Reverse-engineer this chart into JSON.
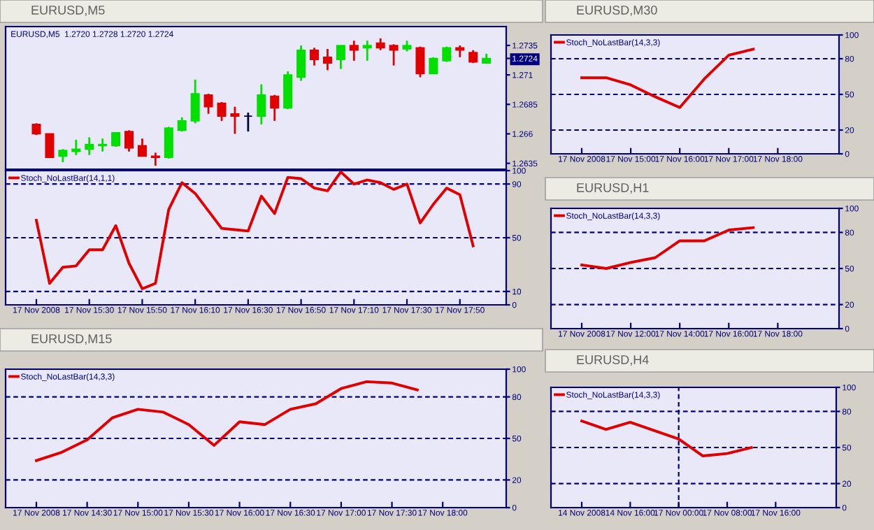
{
  "chart_data": [
    {
      "type": "candlestick",
      "title": "EURUSD,M5",
      "subtitle": "EURUSD,M5  1.2720 1.2728 1.2720 1.2724",
      "categories": [
        null,
        null,
        null,
        null,
        null,
        null,
        null,
        null,
        null,
        null,
        null,
        null,
        null,
        null,
        null,
        null,
        null,
        null,
        null,
        null,
        null,
        null,
        null,
        null,
        null,
        null,
        null,
        null,
        null,
        null,
        null,
        null,
        null,
        null,
        null,
        null
      ],
      "ohlc": [
        [
          1.2668,
          1.2669,
          1.2659,
          1.266
        ],
        [
          1.266,
          1.266,
          1.264,
          1.264
        ],
        [
          1.2641,
          1.2647,
          1.2636,
          1.2646
        ],
        [
          1.2645,
          1.2655,
          1.2642,
          1.2647
        ],
        [
          1.2647,
          1.2657,
          1.2642,
          1.2651
        ],
        [
          1.265,
          1.2656,
          1.2645,
          1.2651
        ],
        [
          1.265,
          1.2661,
          1.2649,
          1.2661
        ],
        [
          1.2662,
          1.2663,
          1.2645,
          1.2648
        ],
        [
          1.265,
          1.2656,
          1.2641,
          1.2641
        ],
        [
          1.2641,
          1.2644,
          1.2633,
          1.264
        ],
        [
          1.264,
          1.2666,
          1.2639,
          1.2665
        ],
        [
          1.2663,
          1.2674,
          1.2662,
          1.2671
        ],
        [
          1.2671,
          1.2706,
          1.2669,
          1.2694
        ],
        [
          1.2693,
          1.2694,
          1.2677,
          1.2683
        ],
        [
          1.2686,
          1.2687,
          1.2671,
          1.2675
        ],
        [
          1.2677,
          1.2683,
          1.266,
          1.2675
        ],
        [
          1.2675,
          1.2678,
          1.2662,
          1.2675
        ],
        [
          1.2675,
          1.2702,
          1.2668,
          1.2693
        ],
        [
          1.2692,
          1.2693,
          1.2671,
          1.2682
        ],
        [
          1.2682,
          1.2713,
          1.2681,
          1.271
        ],
        [
          1.2708,
          1.2735,
          1.2705,
          1.2731
        ],
        [
          1.2731,
          1.2733,
          1.2718,
          1.2723
        ],
        [
          1.2725,
          1.2732,
          1.2714,
          1.272
        ],
        [
          1.2723,
          1.2735,
          1.2715,
          1.2735
        ],
        [
          1.2735,
          1.2739,
          1.2722,
          1.2731
        ],
        [
          1.2733,
          1.2739,
          1.2722,
          1.2735
        ],
        [
          1.2737,
          1.2741,
          1.2731,
          1.2733
        ],
        [
          1.2735,
          1.2736,
          1.2718,
          1.2731
        ],
        [
          1.2732,
          1.2739,
          1.273,
          1.2735
        ],
        [
          1.2733,
          1.2734,
          1.2708,
          1.2711
        ],
        [
          1.2711,
          1.2725,
          1.2711,
          1.2724
        ],
        [
          1.2722,
          1.2734,
          1.2721,
          1.2733
        ],
        [
          1.2733,
          1.2735,
          1.2725,
          1.2731
        ],
        [
          1.2729,
          1.2731,
          1.272,
          1.2721
        ],
        [
          1.272,
          1.2728,
          1.272,
          1.2724
        ],
        null
      ],
      "colors": [
        "#e00000",
        "#e00000",
        "#00e000",
        "#00e000",
        "#00e000",
        "#00e000",
        "#00e000",
        "#e00000",
        "#e00000",
        "#e00000",
        "#00e000",
        "#00e000",
        "#00e000",
        "#e00000",
        "#e00000",
        "#e00000",
        "#000040",
        "#00e000",
        "#e00000",
        "#00e000",
        "#00e000",
        "#e00000",
        "#e00000",
        "#00e000",
        "#e00000",
        "#00e000",
        "#e00000",
        "#e00000",
        "#00e000",
        "#e00000",
        "#00e000",
        "#00e000",
        "#e00000",
        "#e00000",
        "#00e000",
        "#000040"
      ],
      "ylim": [
        1.263,
        1.2751
      ],
      "yticks": [
        1.2635,
        1.266,
        1.2685,
        1.271,
        1.2735,
        {
          "value": 1.2724,
          "label": "1.2724"
        }
      ],
      "tick_labels": "y"
    },
    {
      "type": "line",
      "title": "EURUSD,M30",
      "ylim": [
        0,
        100
      ],
      "yticks": [
        0,
        20,
        50,
        80,
        100
      ],
      "legend": "top left",
      "categories": [
        "17 Nov 2008",
        null,
        "17 Nov 15:00",
        null,
        "17 Nov 16:00",
        null,
        "17 Nov 17:00",
        null,
        "17 Nov 18:00",
        null,
        null
      ],
      "ref_lines": [
        {
          "axis": "y",
          "value": 80,
          "color": "#000080",
          "line_style": "dashed"
        },
        {
          "axis": "y",
          "value": 50,
          "color": "#000080",
          "line_style": "dashed"
        },
        {
          "axis": "y",
          "value": 20,
          "color": "#000080",
          "line_style": "dashed"
        }
      ],
      "series": [
        {
          "name": "Stoch_NoLastBar(14,3,3)",
          "color": "#e00000",
          "values": [
            64,
            64,
            58,
            48,
            39,
            63,
            83,
            88,
            null,
            null,
            null
          ]
        }
      ]
    },
    {
      "type": "line",
      "ylim": [
        0,
        100
      ],
      "yticks": [
        0,
        10,
        50,
        90,
        100
      ],
      "legend": "top left",
      "categories": [
        "17 Nov 2008",
        null,
        null,
        null,
        "17 Nov 15:30",
        null,
        null,
        null,
        "17 Nov 15:50",
        null,
        null,
        null,
        "17 Nov 16:10",
        null,
        null,
        null,
        "17 Nov 16:30",
        null,
        null,
        null,
        "17 Nov 16:50",
        null,
        null,
        null,
        "17 Nov 17:10",
        null,
        null,
        null,
        "17 Nov 17:30",
        null,
        null,
        null,
        "17 Nov 17:50",
        null,
        null,
        null
      ],
      "ref_lines": [
        {
          "axis": "y",
          "value": 90,
          "color": "#000080",
          "line_style": "dashed"
        },
        {
          "axis": "y",
          "value": 50,
          "color": "#000080",
          "line_style": "dashed"
        },
        {
          "axis": "y",
          "value": 10,
          "color": "#000080",
          "line_style": "dashed"
        }
      ],
      "series": [
        {
          "name": "Stoch_NoLastBar(14,1,1)",
          "color": "#e00000",
          "values": [
            63,
            16,
            28,
            29,
            41,
            41,
            59,
            31,
            12,
            16,
            71,
            91,
            83,
            70,
            57,
            56,
            55,
            81,
            68,
            95,
            94,
            87,
            85,
            99,
            90,
            93,
            91,
            86,
            90,
            61,
            75,
            87,
            82,
            44,
            null,
            null
          ]
        }
      ]
    },
    {
      "type": "line",
      "title": "EURUSD,H1",
      "ylim": [
        0,
        100
      ],
      "yticks": [
        0,
        20,
        50,
        80,
        100
      ],
      "legend": "top left",
      "categories": [
        "17 Nov 2008",
        null,
        "17 Nov 12:00",
        null,
        "17 Nov 14:00",
        null,
        "17 Nov 16:00",
        null,
        "17 Nov 18:00",
        null,
        null
      ],
      "ref_lines": [
        {
          "axis": "y",
          "value": 80,
          "color": "#000080",
          "line_style": "dashed"
        },
        {
          "axis": "y",
          "value": 50,
          "color": "#000080",
          "line_style": "dashed"
        },
        {
          "axis": "y",
          "value": 20,
          "color": "#000080",
          "line_style": "dashed"
        }
      ],
      "series": [
        {
          "name": "Stoch_NoLastBar(14,3,3)",
          "color": "#e00000",
          "values": [
            53,
            50,
            55,
            59,
            73,
            73,
            82,
            84,
            null,
            null,
            null
          ]
        }
      ]
    },
    {
      "type": "line",
      "title": "EURUSD,M15",
      "ylim": [
        0,
        100
      ],
      "yticks": [
        0,
        20,
        50,
        80,
        100
      ],
      "legend": "top left",
      "categories": [
        "17 Nov 2008",
        null,
        "17 Nov 14:30",
        null,
        "17 Nov 15:00",
        null,
        "17 Nov 15:30",
        null,
        "17 Nov 16:00",
        null,
        "17 Nov 16:30",
        null,
        "17 Nov 17:00",
        null,
        "17 Nov 17:30",
        null,
        "17 Nov 18:00",
        null,
        null
      ],
      "ref_lines": [
        {
          "axis": "y",
          "value": 80,
          "color": "#000080",
          "line_style": "dashed"
        },
        {
          "axis": "y",
          "value": 50,
          "color": "#000080",
          "line_style": "dashed"
        },
        {
          "axis": "y",
          "value": 20,
          "color": "#000080",
          "line_style": "dashed"
        }
      ],
      "series": [
        {
          "name": "Stoch_NoLastBar(14,3,3)",
          "color": "#e00000",
          "values": [
            34,
            40,
            49,
            65,
            71,
            69,
            60,
            45,
            62,
            60,
            71,
            75,
            86,
            91,
            90,
            85,
            null,
            null,
            null
          ]
        }
      ]
    },
    {
      "type": "line",
      "title": "EURUSD,H4",
      "ylim": [
        0,
        100
      ],
      "yticks": [
        0,
        20,
        50,
        80,
        100
      ],
      "legend": "top left",
      "categories": [
        "14 Nov 2008",
        null,
        "14 Nov 16:00",
        null,
        "17 Nov 00:00",
        null,
        "17 Nov 08:00",
        null,
        "17 Nov 16:00",
        null,
        null
      ],
      "ref_lines": [
        {
          "axis": "y",
          "value": 80,
          "color": "#000080",
          "line_style": "dashed"
        },
        {
          "axis": "y",
          "value": 50,
          "color": "#000080",
          "line_style": "dashed"
        },
        {
          "axis": "y",
          "value": 20,
          "color": "#000080",
          "line_style": "dashed"
        },
        {
          "axis": "x",
          "value": "17 Nov 00:00",
          "color": "#000080",
          "line_style": "dashed"
        }
      ],
      "series": [
        {
          "name": "Stoch_NoLastBar(14,3,3)",
          "color": "#e00000",
          "values": [
            72,
            65,
            71,
            64,
            57,
            43,
            45,
            50,
            null,
            null,
            null
          ]
        }
      ]
    }
  ]
}
